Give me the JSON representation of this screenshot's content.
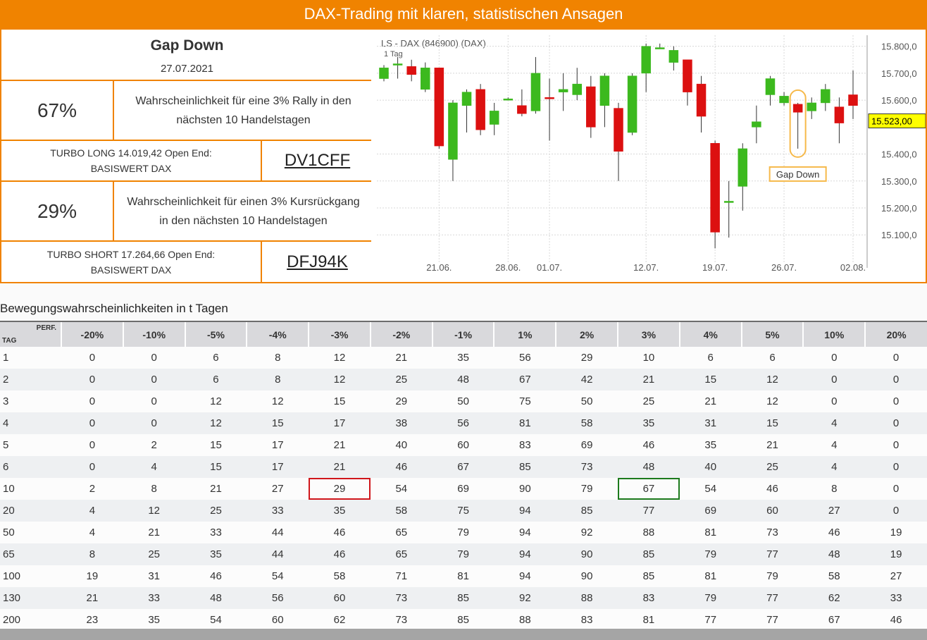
{
  "header": {
    "title": "DAX-Trading mit klaren, statistischen Ansagen"
  },
  "info": {
    "signal": "Gap Down",
    "date": "27.07.2021",
    "long_prob": "67%",
    "long_text_1": "Wahrscheinlichkeit für eine 3% Rally in den",
    "long_text_2": "nächsten 10 Handelstagen",
    "long_product_1": "TURBO LONG 14.019,42 Open End:",
    "long_product_2": "BASISWERT DAX",
    "long_wkn": "DV1CFF",
    "short_prob": "29%",
    "short_text_1": "Wahrscheinlichkeit für einen 3% Kursrückgang",
    "short_text_2": "in den nächsten 10 Handelstagen",
    "short_product_1": "TURBO SHORT 17.264,66 Open End:",
    "short_product_2": "BASISWERT DAX",
    "short_wkn": "DFJ94K"
  },
  "chart_data": {
    "type": "candlestick",
    "title": "LS - DAX (846900) (DAX)",
    "subtitle": "1 Tag",
    "y_ticks": [
      "15.800,0",
      "15.700,0",
      "15.600,0",
      "15.400,0",
      "15.300,0",
      "15.200,0",
      "15.100,0"
    ],
    "y_tick_values": [
      15800,
      15700,
      15600,
      15400,
      15300,
      15200,
      15100
    ],
    "ylim": [
      15030,
      15820
    ],
    "x_ticks": [
      {
        "label": "21.06.",
        "index": 4
      },
      {
        "label": "28.06.",
        "index": 9
      },
      {
        "label": "01.07.",
        "index": 12
      },
      {
        "label": "12.07.",
        "index": 19
      },
      {
        "label": "19.07.",
        "index": 24
      },
      {
        "label": "26.07.",
        "index": 29
      },
      {
        "label": "02.08.",
        "index": 34
      }
    ],
    "last_price": "15.523,00",
    "last_value": 15523,
    "annotation": "Gap Down",
    "annotation_index": 30,
    "candles": [
      {
        "o": 15680,
        "h": 15730,
        "l": 15670,
        "c": 15720
      },
      {
        "o": 15730,
        "h": 15760,
        "l": 15680,
        "c": 15735
      },
      {
        "o": 15725,
        "h": 15750,
        "l": 15670,
        "c": 15695
      },
      {
        "o": 15640,
        "h": 15740,
        "l": 15630,
        "c": 15720
      },
      {
        "o": 15720,
        "h": 15720,
        "l": 15420,
        "c": 15430
      },
      {
        "o": 15380,
        "h": 15600,
        "l": 15300,
        "c": 15590
      },
      {
        "o": 15580,
        "h": 15640,
        "l": 15480,
        "c": 15630
      },
      {
        "o": 15640,
        "h": 15660,
        "l": 15470,
        "c": 15490
      },
      {
        "o": 15510,
        "h": 15590,
        "l": 15470,
        "c": 15560
      },
      {
        "o": 15600,
        "h": 15610,
        "l": 15600,
        "c": 15605
      },
      {
        "o": 15580,
        "h": 15640,
        "l": 15540,
        "c": 15550
      },
      {
        "o": 15560,
        "h": 15760,
        "l": 15550,
        "c": 15700
      },
      {
        "o": 15610,
        "h": 15680,
        "l": 15450,
        "c": 15605
      },
      {
        "o": 15630,
        "h": 15700,
        "l": 15560,
        "c": 15640
      },
      {
        "o": 15620,
        "h": 15720,
        "l": 15600,
        "c": 15660
      },
      {
        "o": 15650,
        "h": 15690,
        "l": 15460,
        "c": 15500
      },
      {
        "o": 15580,
        "h": 15700,
        "l": 15500,
        "c": 15690
      },
      {
        "o": 15570,
        "h": 15590,
        "l": 15300,
        "c": 15410
      },
      {
        "o": 15480,
        "h": 15700,
        "l": 15470,
        "c": 15690
      },
      {
        "o": 15700,
        "h": 15810,
        "l": 15630,
        "c": 15800
      },
      {
        "o": 15795,
        "h": 15810,
        "l": 15790,
        "c": 15795
      },
      {
        "o": 15740,
        "h": 15800,
        "l": 15710,
        "c": 15785
      },
      {
        "o": 15750,
        "h": 15750,
        "l": 15580,
        "c": 15630
      },
      {
        "o": 15660,
        "h": 15690,
        "l": 15480,
        "c": 15540
      },
      {
        "o": 15440,
        "h": 15450,
        "l": 15050,
        "c": 15110
      },
      {
        "o": 15220,
        "h": 15300,
        "l": 15090,
        "c": 15225
      },
      {
        "o": 15280,
        "h": 15440,
        "l": 15190,
        "c": 15420
      },
      {
        "o": 15500,
        "h": 15580,
        "l": 15440,
        "c": 15520
      },
      {
        "o": 15620,
        "h": 15690,
        "l": 15580,
        "c": 15680
      },
      {
        "o": 15590,
        "h": 15630,
        "l": 15580,
        "c": 15615
      },
      {
        "o": 15585,
        "h": 15590,
        "l": 15420,
        "c": 15555
      },
      {
        "o": 15560,
        "h": 15610,
        "l": 15530,
        "c": 15590
      },
      {
        "o": 15590,
        "h": 15660,
        "l": 15560,
        "c": 15640
      },
      {
        "o": 15575,
        "h": 15610,
        "l": 15440,
        "c": 15515
      },
      {
        "o": 15620,
        "h": 15710,
        "l": 15530,
        "c": 15580
      }
    ]
  },
  "table": {
    "title": "Bewegungswahrscheinlichkeiten in t Tagen",
    "corner_perf": "PERF.",
    "corner_tag": "TAG",
    "headers": [
      "-20%",
      "-10%",
      "-5%",
      "-4%",
      "-3%",
      "-2%",
      "-1%",
      "1%",
      "2%",
      "3%",
      "4%",
      "5%",
      "10%",
      "20%"
    ],
    "rows": [
      [
        "1",
        "0",
        "0",
        "6",
        "8",
        "12",
        "21",
        "35",
        "56",
        "29",
        "10",
        "6",
        "6",
        "0",
        "0"
      ],
      [
        "2",
        "0",
        "0",
        "6",
        "8",
        "12",
        "25",
        "48",
        "67",
        "42",
        "21",
        "15",
        "12",
        "0",
        "0"
      ],
      [
        "3",
        "0",
        "0",
        "12",
        "12",
        "15",
        "29",
        "50",
        "75",
        "50",
        "25",
        "21",
        "12",
        "0",
        "0"
      ],
      [
        "4",
        "0",
        "0",
        "12",
        "15",
        "17",
        "38",
        "56",
        "81",
        "58",
        "35",
        "31",
        "15",
        "4",
        "0"
      ],
      [
        "5",
        "0",
        "2",
        "15",
        "17",
        "21",
        "40",
        "60",
        "83",
        "69",
        "46",
        "35",
        "21",
        "4",
        "0"
      ],
      [
        "6",
        "0",
        "4",
        "15",
        "17",
        "21",
        "46",
        "67",
        "85",
        "73",
        "48",
        "40",
        "25",
        "4",
        "0"
      ],
      [
        "10",
        "2",
        "8",
        "21",
        "27",
        "29",
        "54",
        "69",
        "90",
        "79",
        "67",
        "54",
        "46",
        "8",
        "0"
      ],
      [
        "20",
        "4",
        "12",
        "25",
        "33",
        "35",
        "58",
        "75",
        "94",
        "85",
        "77",
        "69",
        "60",
        "27",
        "0"
      ],
      [
        "50",
        "4",
        "21",
        "33",
        "44",
        "46",
        "65",
        "79",
        "94",
        "92",
        "88",
        "81",
        "73",
        "46",
        "19"
      ],
      [
        "65",
        "8",
        "25",
        "35",
        "44",
        "46",
        "65",
        "79",
        "94",
        "90",
        "85",
        "79",
        "77",
        "48",
        "19"
      ],
      [
        "100",
        "19",
        "31",
        "46",
        "54",
        "58",
        "71",
        "81",
        "94",
        "90",
        "85",
        "81",
        "79",
        "58",
        "27"
      ],
      [
        "130",
        "21",
        "33",
        "48",
        "56",
        "60",
        "73",
        "85",
        "92",
        "88",
        "83",
        "79",
        "77",
        "62",
        "33"
      ],
      [
        "200",
        "23",
        "35",
        "54",
        "60",
        "62",
        "73",
        "85",
        "88",
        "83",
        "81",
        "77",
        "77",
        "67",
        "46"
      ]
    ],
    "highlight_red": {
      "row": 6,
      "col": 5
    },
    "highlight_green": {
      "row": 6,
      "col": 10
    }
  },
  "colors": {
    "accent": "#f08300",
    "up": "#3cb91e",
    "down": "#dc1010"
  }
}
